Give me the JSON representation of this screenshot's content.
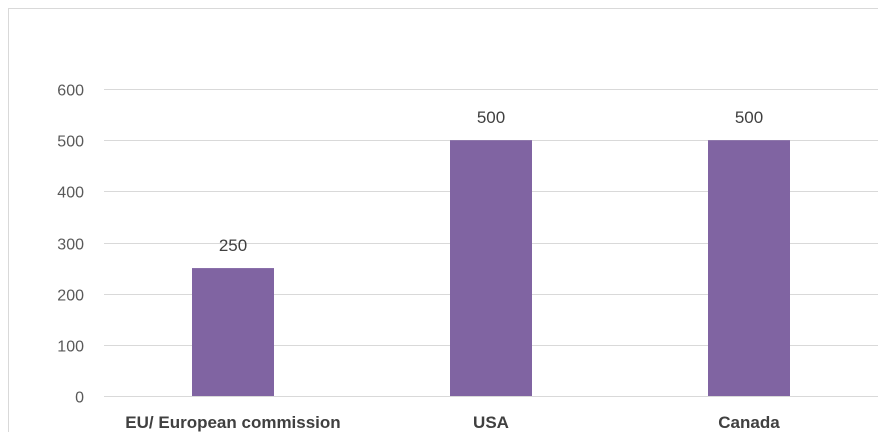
{
  "chart_data": {
    "type": "bar",
    "title": "",
    "xlabel": "",
    "ylabel": "",
    "categories": [
      "EU/ European commission",
      "USA",
      "Canada"
    ],
    "values": [
      250,
      500,
      500
    ],
    "data_labels": [
      "250",
      "500",
      "500"
    ],
    "ylim": [
      0,
      600
    ],
    "yticks": [
      0,
      100,
      200,
      300,
      400,
      500,
      600
    ],
    "ytick_labels": [
      "0",
      "100",
      "200",
      "300",
      "400",
      "500",
      "600"
    ],
    "grid": true,
    "legend": "none",
    "colors": {
      "bar": "#8064a2",
      "grid": "#d9d9d9",
      "frame": "#d9d9d9"
    }
  }
}
